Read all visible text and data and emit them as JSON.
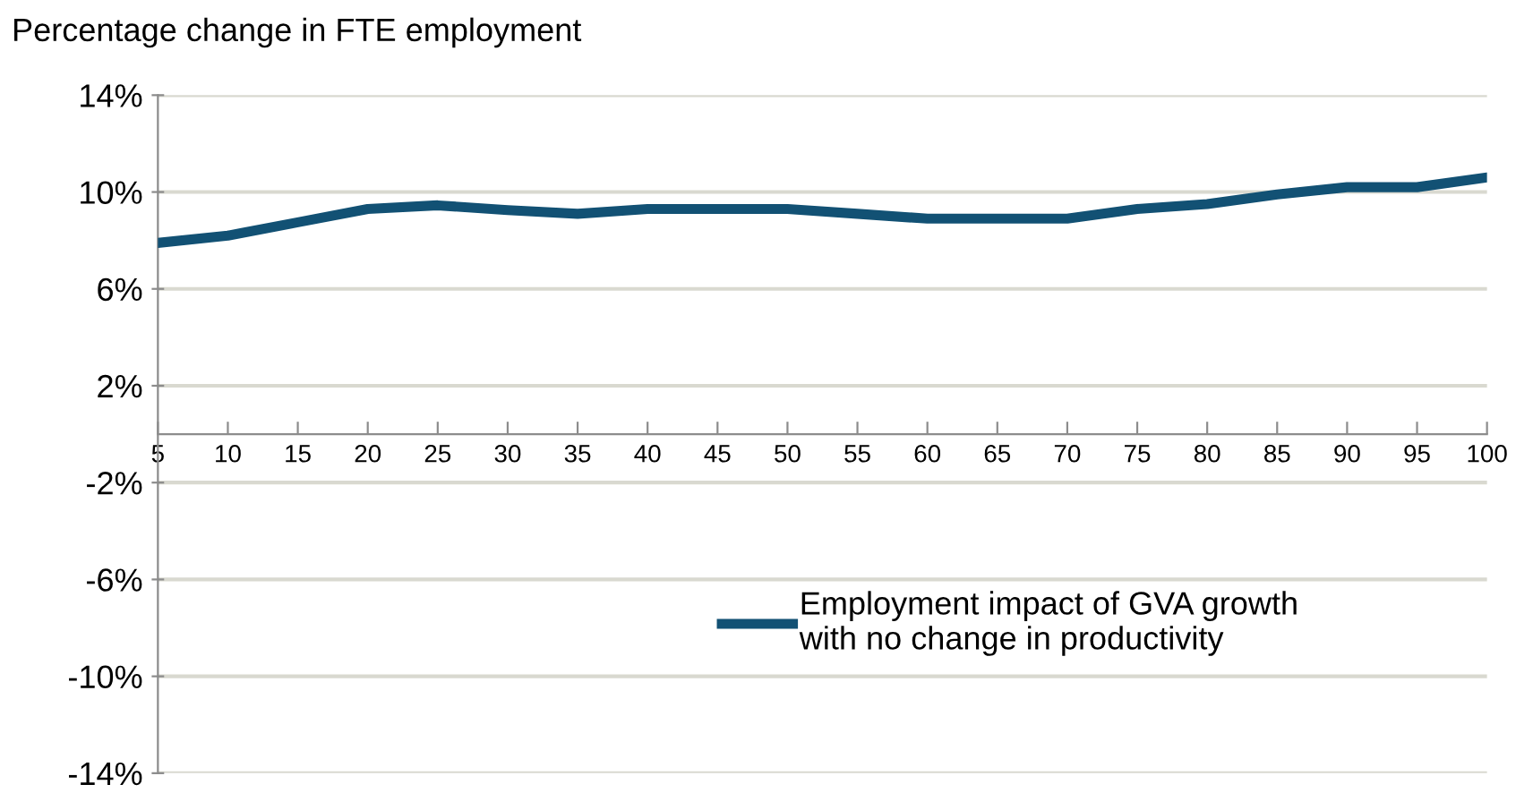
{
  "chart_data": {
    "type": "line",
    "ylabel": "Percentage change in FTE employment",
    "x": [
      5,
      10,
      15,
      20,
      25,
      30,
      35,
      40,
      45,
      50,
      55,
      60,
      65,
      70,
      75,
      80,
      85,
      90,
      95,
      100
    ],
    "series": [
      {
        "name": "Employment impact of GVA growth\nwith no change in productivity",
        "color": "#125174",
        "values": [
          7.9,
          8.2,
          8.75,
          9.3,
          9.45,
          9.25,
          9.1,
          9.3,
          9.3,
          9.3,
          9.1,
          8.9,
          8.9,
          8.9,
          9.3,
          9.5,
          9.9,
          10.2,
          10.2,
          10.6
        ]
      }
    ],
    "xlim": [
      5,
      100
    ],
    "xticks": [
      5,
      10,
      15,
      20,
      25,
      30,
      35,
      40,
      45,
      50,
      55,
      60,
      65,
      70,
      75,
      80,
      85,
      90,
      95,
      100
    ],
    "ylim": [
      -14,
      14
    ],
    "yticks": [
      {
        "value": 14,
        "label": "14%"
      },
      {
        "value": 10,
        "label": "10%"
      },
      {
        "value": 6,
        "label": "6%"
      },
      {
        "value": 2,
        "label": "2%"
      },
      {
        "value": -2,
        "label": "-2%"
      },
      {
        "value": -6,
        "label": "-6%"
      },
      {
        "value": -10,
        "label": "-10%"
      },
      {
        "value": -14,
        "label": "-14%"
      }
    ],
    "grid": "y",
    "legend": "lower right",
    "marker": "none",
    "line_style": "solid"
  }
}
